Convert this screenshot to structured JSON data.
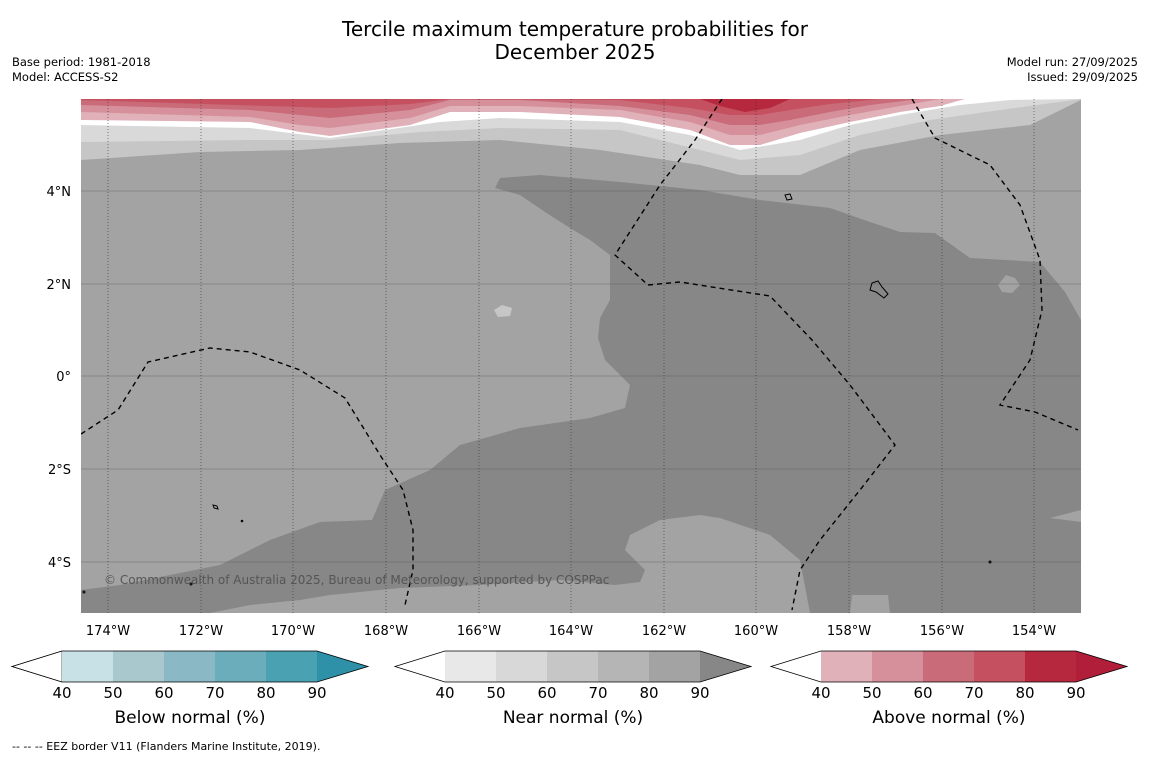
{
  "title": {
    "line1": "Tercile maximum temperature probabilities for",
    "line2": "December 2025"
  },
  "meta": {
    "base_period": "Base period: 1981-2018",
    "model": "Model: ACCESS-S2",
    "model_run": "Model run: 27/09/2025",
    "issued": "Issued: 29/09/2025"
  },
  "map": {
    "lat_labels": [
      "4°N",
      "2°N",
      "0°",
      "2°S",
      "4°S"
    ],
    "lon_labels": [
      "174°W",
      "172°W",
      "170°W",
      "168°W",
      "166°W",
      "164°W",
      "162°W",
      "160°W",
      "158°W",
      "156°W",
      "154°W"
    ],
    "copyright": "© Commonwealth of Australia 2025, Bureau of Meteorology, supported by COSPPac",
    "colors": {
      "near_50": "#d9d9d9",
      "near_60": "#c6c6c6",
      "near_80": "#a3a3a3",
      "near_90": "#878787",
      "above_50": "#e0b1b8",
      "above_60": "#d5909b",
      "above_70": "#c96b78",
      "above_80": "#c5505f",
      "above_90": "#b6283e"
    }
  },
  "colorbars": {
    "ticks": [
      "40",
      "50",
      "60",
      "70",
      "80",
      "90"
    ],
    "below": {
      "label": "Below normal (%)",
      "colors": [
        "#c8e1e7",
        "#a8c8cd",
        "#8bb8c5",
        "#6badba",
        "#49a1b2",
        "#2e91a8"
      ]
    },
    "near": {
      "label": "Near normal (%)",
      "colors": [
        "#e8e8e8",
        "#d8d8d8",
        "#c6c6c6",
        "#b5b5b5",
        "#a3a3a3",
        "#878787"
      ]
    },
    "above": {
      "label": "Above normal (%)",
      "colors": [
        "#e0b1b8",
        "#d5909b",
        "#c96b78",
        "#c5505f",
        "#b6283e",
        "#b01e3a"
      ]
    }
  },
  "footer": "--  --  -- EEZ border V11 (Flanders Marine Institute, 2019)."
}
